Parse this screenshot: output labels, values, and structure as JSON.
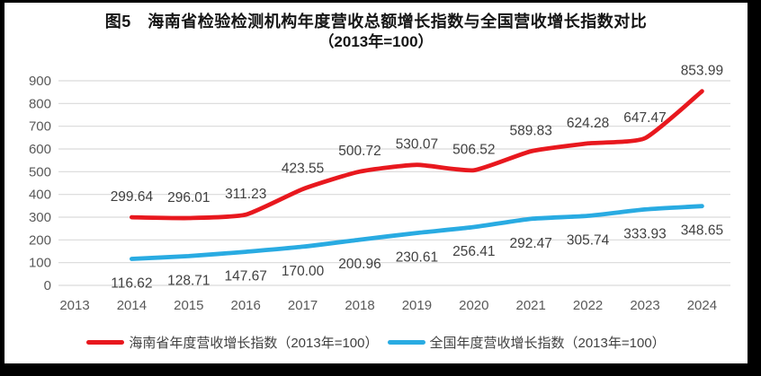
{
  "title": {
    "line1": "图5　海南省检验检测机构年度营收总额增长指数与全国营收增长指数对比",
    "line2": "（2013年=100）"
  },
  "colors": {
    "frame": "#000000",
    "background": "#ffffff",
    "gridline": "#d9d9d9",
    "axis_text": "#595959",
    "data_label_text": "#404040",
    "hainan_red": "#e8181e",
    "national_blue": "#29abe2"
  },
  "chart_data": {
    "type": "line",
    "title": "图5 海南省检验检测机构年度营收总额增长指数与全国营收增长指数对比（2013年=100）",
    "xlabel": "",
    "ylabel": "",
    "categories": [
      "2013",
      "2014",
      "2015",
      "2016",
      "2017",
      "2018",
      "2019",
      "2020",
      "2021",
      "2022",
      "2023",
      "2024"
    ],
    "series": [
      {
        "id": "hainan",
        "name": "海南省年度营收增长指数（2013年=100）",
        "color": "#e8181e",
        "label_side": "above",
        "values": [
          null,
          299.64,
          296.01,
          311.23,
          423.55,
          500.72,
          530.07,
          506.52,
          589.83,
          624.28,
          647.47,
          853.99
        ],
        "labels": [
          null,
          "299.64",
          "296.01",
          "311.23",
          "423.55",
          "500.72",
          "530.07",
          "506.52",
          "589.83",
          "624.28",
          "647.47",
          "853.99"
        ]
      },
      {
        "id": "national",
        "name": "全国年度营收增长指数（2013年=100）",
        "color": "#29abe2",
        "label_side": "below",
        "values": [
          null,
          116.62,
          128.71,
          147.67,
          170.0,
          200.96,
          230.61,
          256.41,
          292.47,
          305.74,
          333.93,
          348.65
        ],
        "labels": [
          null,
          "116.62",
          "128.71",
          "147.67",
          "170.00",
          "200.96",
          "230.61",
          "256.41",
          "292.47",
          "305.74",
          "333.93",
          "348.65"
        ]
      }
    ],
    "ylim": [
      0,
      900
    ],
    "y_ticks": [
      0,
      100,
      200,
      300,
      400,
      500,
      600,
      700,
      800,
      900
    ],
    "grid": true,
    "legend_position": "bottom"
  }
}
